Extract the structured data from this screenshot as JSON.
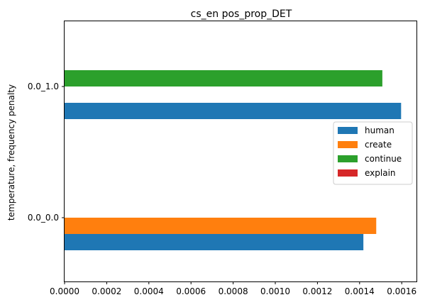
{
  "chart_data": {
    "type": "bar",
    "orientation": "horizontal",
    "title": "cs_en pos_prop_DET",
    "ylabel": "temperature, frequency penalty",
    "xlabel": "",
    "categories": [
      "0.0_0.0",
      "0.0_1.0"
    ],
    "xlim": [
      0,
      0.00167
    ],
    "xticks": [
      "0.0000",
      "0.0002",
      "0.0004",
      "0.0006",
      "0.0008",
      "0.0010",
      "0.0012",
      "0.0014",
      "0.0016"
    ],
    "grid": false,
    "legend_position": "center-right",
    "series": [
      {
        "name": "human",
        "color": "#1f77b4",
        "values": [
          0.001418,
          0.001597
        ]
      },
      {
        "name": "create",
        "color": "#ff7f0e",
        "values": [
          0.001479,
          null
        ]
      },
      {
        "name": "continue",
        "color": "#2ca02c",
        "values": [
          null,
          0.001508
        ]
      },
      {
        "name": "explain",
        "color": "#d62728",
        "values": [
          null,
          null
        ]
      }
    ]
  }
}
